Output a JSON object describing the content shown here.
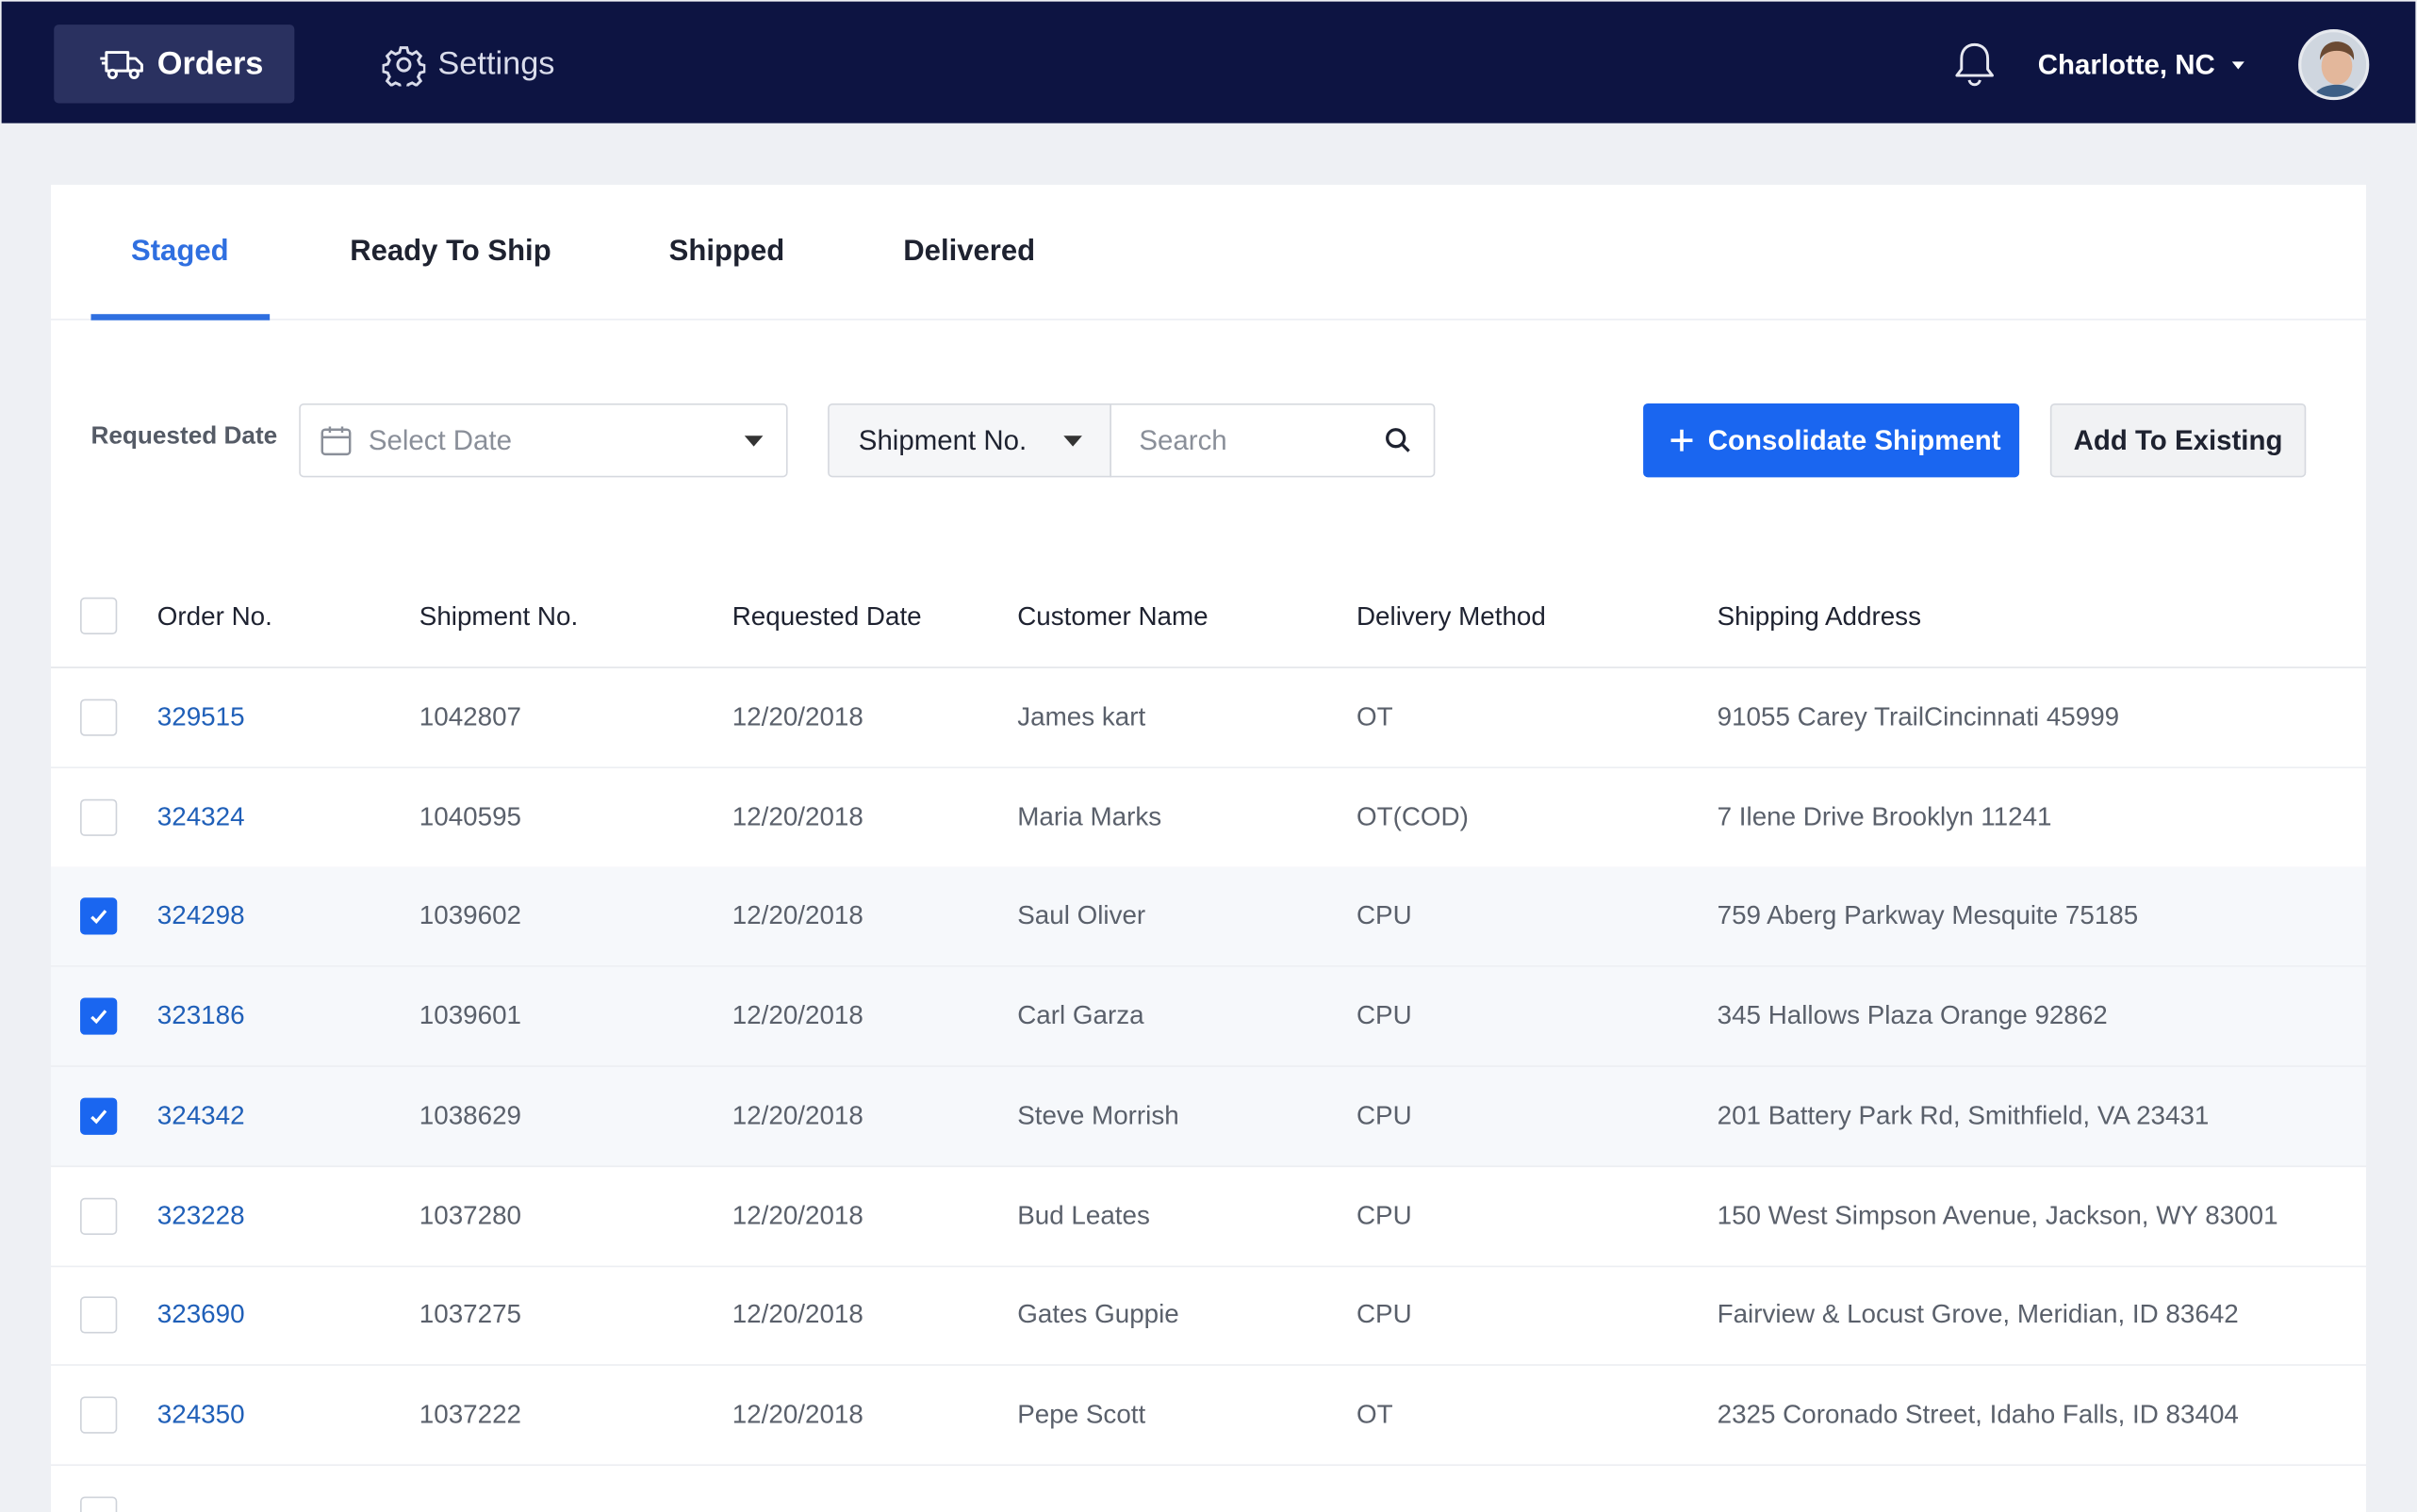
{
  "nav": {
    "orders_label": "Orders",
    "settings_label": "Settings",
    "location": "Charlotte, NC"
  },
  "tabs": [
    {
      "label": "Staged",
      "active": true
    },
    {
      "label": "Ready To Ship",
      "active": false
    },
    {
      "label": "Shipped",
      "active": false
    },
    {
      "label": "Delivered",
      "active": false
    }
  ],
  "filters": {
    "requested_date_label": "Requested Date",
    "date_placeholder": "Select Date",
    "search_field": "Shipment No.",
    "search_placeholder": "Search"
  },
  "actions": {
    "consolidate_label": "Consolidate Shipment",
    "add_existing_label": "Add To Existing"
  },
  "table": {
    "columns": [
      "Order No.",
      "Shipment No.",
      "Requested Date",
      "Customer Name",
      "Delivery Method",
      "Shipping Address"
    ],
    "rows": [
      {
        "order": "329515",
        "shipment": "1042807",
        "date": "12/20/2018",
        "customer": "James kart",
        "method": "OT",
        "address": "91055 Carey TrailCincinnati 45999",
        "checked": false
      },
      {
        "order": "324324",
        "shipment": "1040595",
        "date": "12/20/2018",
        "customer": "Maria Marks",
        "method": "OT(COD)",
        "address": "7 Ilene Drive Brooklyn 11241",
        "checked": false
      },
      {
        "order": "324298",
        "shipment": "1039602",
        "date": "12/20/2018",
        "customer": "Saul Oliver",
        "method": "CPU",
        "address": "759 Aberg Parkway Mesquite 75185",
        "checked": true
      },
      {
        "order": "323186",
        "shipment": "1039601",
        "date": "12/20/2018",
        "customer": "Carl Garza",
        "method": "CPU",
        "address": "345 Hallows Plaza Orange 92862",
        "checked": true
      },
      {
        "order": "324342",
        "shipment": "1038629",
        "date": "12/20/2018",
        "customer": "Steve Morrish",
        "method": "CPU",
        "address": "201 Battery Park Rd, Smithfield, VA 23431",
        "checked": true
      },
      {
        "order": "323228",
        "shipment": "1037280",
        "date": "12/20/2018",
        "customer": "Bud Leates",
        "method": "CPU",
        "address": "150 West Simpson Avenue, Jackson, WY 83001",
        "checked": false
      },
      {
        "order": "323690",
        "shipment": "1037275",
        "date": "12/20/2018",
        "customer": "Gates Guppie",
        "method": "CPU",
        "address": "Fairview & Locust Grove, Meridian, ID 83642",
        "checked": false
      },
      {
        "order": "324350",
        "shipment": "1037222",
        "date": "12/20/2018",
        "customer": "Pepe Scott",
        "method": "OT",
        "address": "2325 Coronado Street, Idaho Falls, ID  83404",
        "checked": false
      }
    ]
  },
  "colors": {
    "navbar": "#0d1442",
    "accent": "#1a66f0",
    "link": "#1f5fb8"
  }
}
